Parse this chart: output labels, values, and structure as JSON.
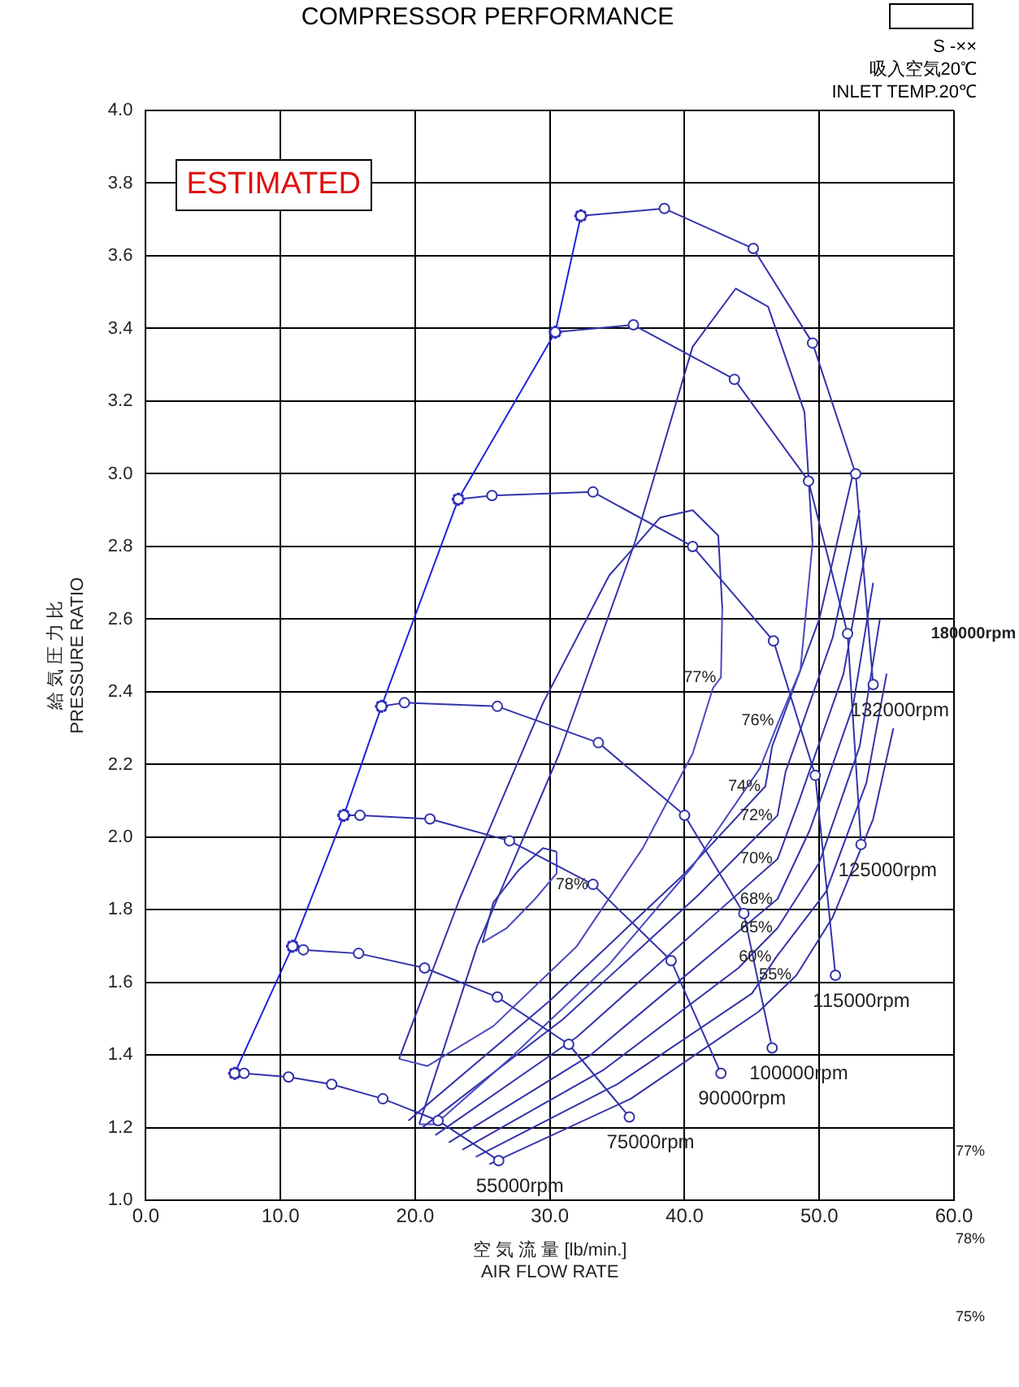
{
  "chart_data": {
    "type": "line",
    "title": "COMPRESSOR PERFORMANCE",
    "subtitle": "S -××\n吸入空気20℃\nINLET TEMP.20℃",
    "xlabel": "空 気 流 量 [lb/min.]\nAIR FLOW RATE",
    "ylabel": "給 気 圧 力 比\nPRESSURE RATIO",
    "xlim": [
      0,
      60
    ],
    "ylim": [
      1,
      4
    ],
    "xticks": [
      {
        "value": 0,
        "label": "0.0"
      },
      {
        "value": 10,
        "label": "10.0"
      },
      {
        "value": 20,
        "label": "20.0"
      },
      {
        "value": 30,
        "label": "30.0"
      },
      {
        "value": 40,
        "label": "40.0"
      },
      {
        "value": 50,
        "label": "50.0"
      },
      {
        "value": 60,
        "label": "60.0"
      }
    ],
    "yticks": [
      {
        "value": 1,
        "label": "1.0"
      },
      {
        "value": 1.2,
        "label": "1.2"
      },
      {
        "value": 1.4,
        "label": "1.4"
      },
      {
        "value": 1.6,
        "label": "1.6"
      },
      {
        "value": 1.8,
        "label": "1.8"
      },
      {
        "value": 2,
        "label": "2.0"
      },
      {
        "value": 2.2,
        "label": "2.2"
      },
      {
        "value": 2.4,
        "label": "2.4"
      },
      {
        "value": 2.6,
        "label": "2.6"
      },
      {
        "value": 2.8,
        "label": "2.8"
      },
      {
        "value": 3,
        "label": "3.0"
      },
      {
        "value": 3.2,
        "label": "3.2"
      },
      {
        "value": 3.4,
        "label": "3.4"
      },
      {
        "value": 3.6,
        "label": "3.6"
      },
      {
        "value": 3.8,
        "label": "3.8"
      },
      {
        "value": 4,
        "label": "4.0"
      }
    ],
    "grid": true,
    "legend": false,
    "marker": "circle",
    "line_style": "solid",
    "series": [
      {
        "name": "55000rpm",
        "color": "#3333aa",
        "x": [
          6.6,
          7.3,
          10.6,
          13.8,
          17.6,
          21.7,
          26.2
        ],
        "values": [
          1.35,
          1.35,
          1.34,
          1.32,
          1.28,
          1.22,
          1.11
        ]
      },
      {
        "name": "75000rpm",
        "color": "#3333aa",
        "x": [
          10.9,
          11.7,
          15.8,
          20.7,
          26.1,
          31.4,
          35.9
        ],
        "values": [
          1.7,
          1.69,
          1.68,
          1.64,
          1.56,
          1.43,
          1.23
        ]
      },
      {
        "name": "90000rpm",
        "color": "#3333aa",
        "x": [
          14.7,
          15.9,
          21.1,
          27.0,
          33.2,
          39.0,
          42.7
        ],
        "values": [
          2.06,
          2.06,
          2.05,
          1.99,
          1.87,
          1.66,
          1.35
        ]
      },
      {
        "name": "100000rpm",
        "color": "#3333aa",
        "x": [
          17.5,
          19.2,
          26.1,
          33.6,
          40.0,
          44.4,
          46.5
        ],
        "values": [
          2.36,
          2.37,
          2.36,
          2.26,
          2.06,
          1.79,
          1.42
        ]
      },
      {
        "name": "115000rpm",
        "color": "#3333aa",
        "x": [
          23.2,
          25.7,
          33.2,
          40.6,
          46.6,
          49.7,
          51.2
        ],
        "values": [
          2.93,
          2.94,
          2.95,
          2.8,
          2.54,
          2.17,
          1.62
        ]
      },
      {
        "name": "125000rpm",
        "color": "#3333aa",
        "x": [
          30.4,
          36.2,
          43.7,
          49.2,
          52.1,
          53.1
        ],
        "values": [
          3.39,
          3.41,
          3.26,
          2.98,
          2.56,
          1.98
        ]
      },
      {
        "name": "132000rpm",
        "color": "#3333aa",
        "x": [
          32.3,
          38.5,
          45.1,
          49.5,
          52.7,
          54.0
        ],
        "values": [
          3.71,
          3.73,
          3.62,
          3.36,
          3.0,
          2.42
        ]
      },
      {
        "color": "#2222dd",
        "marker": "cross",
        "x": [
          6.6,
          10.9,
          14.7,
          17.5,
          23.2,
          30.4,
          32.3
        ],
        "values": [
          1.35,
          1.7,
          2.06,
          2.36,
          2.93,
          3.39,
          3.71
        ]
      },
      {
        "color": "#3333aa",
        "marker": "none",
        "x": [
          25.0,
          25.8,
          27.7,
          29.5,
          30.5
        ],
        "values": [
          1.71,
          1.82,
          1.91,
          1.97,
          1.96
        ]
      },
      {
        "color": "#4a4ac0",
        "marker": "none",
        "x": [
          25.0,
          26.8,
          28.9,
          30.5,
          30.5
        ],
        "values": [
          1.71,
          1.75,
          1.83,
          1.9,
          1.96
        ]
      },
      {
        "color": "#3333aa",
        "marker": "none",
        "x": [
          18.8,
          23.3,
          29.5,
          34.4,
          38.2,
          40.6,
          42.5,
          42.8
        ],
        "values": [
          1.39,
          1.83,
          2.37,
          2.72,
          2.88,
          2.9,
          2.83,
          2.63
        ]
      },
      {
        "color": "#4a4ac0",
        "marker": "none",
        "x": [
          18.8,
          20.9,
          25.8,
          32.0,
          36.9,
          40.6,
          42.1,
          42.7,
          42.8
        ],
        "values": [
          1.39,
          1.37,
          1.48,
          1.7,
          1.97,
          2.23,
          2.41,
          2.44,
          2.63
        ]
      },
      {
        "color": "#3333aa",
        "marker": "none",
        "x": [
          20.3,
          24.6,
          30.7,
          36.3,
          40.6,
          43.8,
          46.2,
          48.9,
          49.5
        ],
        "values": [
          1.21,
          1.7,
          2.23,
          2.81,
          3.35,
          3.51,
          3.46,
          3.17,
          2.81
        ]
      },
      {
        "color": "#4a4ac0",
        "marker": "none",
        "x": [
          20.3,
          21.5,
          27.0,
          34.4,
          40.6,
          45.6,
          47.0,
          48.6,
          49.5
        ],
        "values": [
          1.21,
          1.21,
          1.39,
          1.65,
          1.92,
          2.19,
          2.32,
          2.46,
          2.81
        ]
      },
      {
        "color": "#3333aa",
        "marker": "none",
        "x": [
          19.5,
          30,
          40,
          46.0,
          46.5,
          50,
          52.5
        ],
        "values": [
          1.22,
          1.55,
          1.9,
          2.14,
          2.25,
          2.6,
          3.0
        ]
      },
      {
        "color": "#3333aa",
        "marker": "none",
        "x": [
          20.5,
          31,
          41,
          46.9,
          47.5,
          51,
          53
        ],
        "values": [
          1.2,
          1.5,
          1.84,
          2.06,
          2.18,
          2.55,
          2.9
        ]
      },
      {
        "color": "#3333aa",
        "marker": "none",
        "x": [
          21.5,
          32,
          42,
          46.9,
          48.5,
          51.8,
          53.5
        ],
        "values": [
          1.18,
          1.45,
          1.78,
          1.94,
          2.1,
          2.45,
          2.8
        ]
      },
      {
        "color": "#3333aa",
        "marker": "none",
        "x": [
          22.5,
          33,
          43,
          46.9,
          49.3,
          52.5,
          54
        ],
        "values": [
          1.16,
          1.4,
          1.71,
          1.83,
          2.02,
          2.36,
          2.7
        ]
      },
      {
        "color": "#3333aa",
        "marker": "none",
        "x": [
          23.5,
          34,
          44,
          46.9,
          50,
          53,
          54.5
        ],
        "values": [
          1.14,
          1.36,
          1.64,
          1.75,
          1.93,
          2.25,
          2.6
        ]
      },
      {
        "color": "#3333aa",
        "marker": "none",
        "x": [
          24.5,
          35,
          45,
          46.8,
          50.5,
          53.5,
          55
        ],
        "values": [
          1.12,
          1.32,
          1.57,
          1.67,
          1.85,
          2.15,
          2.45
        ]
      },
      {
        "color": "#3333aa",
        "marker": "none",
        "x": [
          25.5,
          36,
          45.5,
          48.3,
          51,
          54,
          55.5
        ],
        "values": [
          1.1,
          1.28,
          1.52,
          1.62,
          1.78,
          2.05,
          2.3
        ]
      }
    ],
    "annotations": [
      "ESTIMATED",
      "180000rpm",
      "77%",
      "78%",
      "75%",
      {
        "text": "78%",
        "x": 33.2,
        "y": 1.87
      },
      {
        "text": "77%",
        "x": 42.7,
        "y": 2.44
      },
      {
        "text": "76%",
        "x": 47.0,
        "y": 2.32
      },
      {
        "text": "74%",
        "x": 46.0,
        "y": 2.14
      },
      {
        "text": "72%",
        "x": 46.9,
        "y": 2.06
      },
      {
        "text": "70%",
        "x": 46.9,
        "y": 1.94
      },
      {
        "text": "68%",
        "x": 46.9,
        "y": 1.83
      },
      {
        "text": "65%",
        "x": 46.9,
        "y": 1.75
      },
      {
        "text": "60%",
        "x": 46.8,
        "y": 1.67
      },
      {
        "text": "55%",
        "x": 48.3,
        "y": 1.62
      }
    ]
  }
}
